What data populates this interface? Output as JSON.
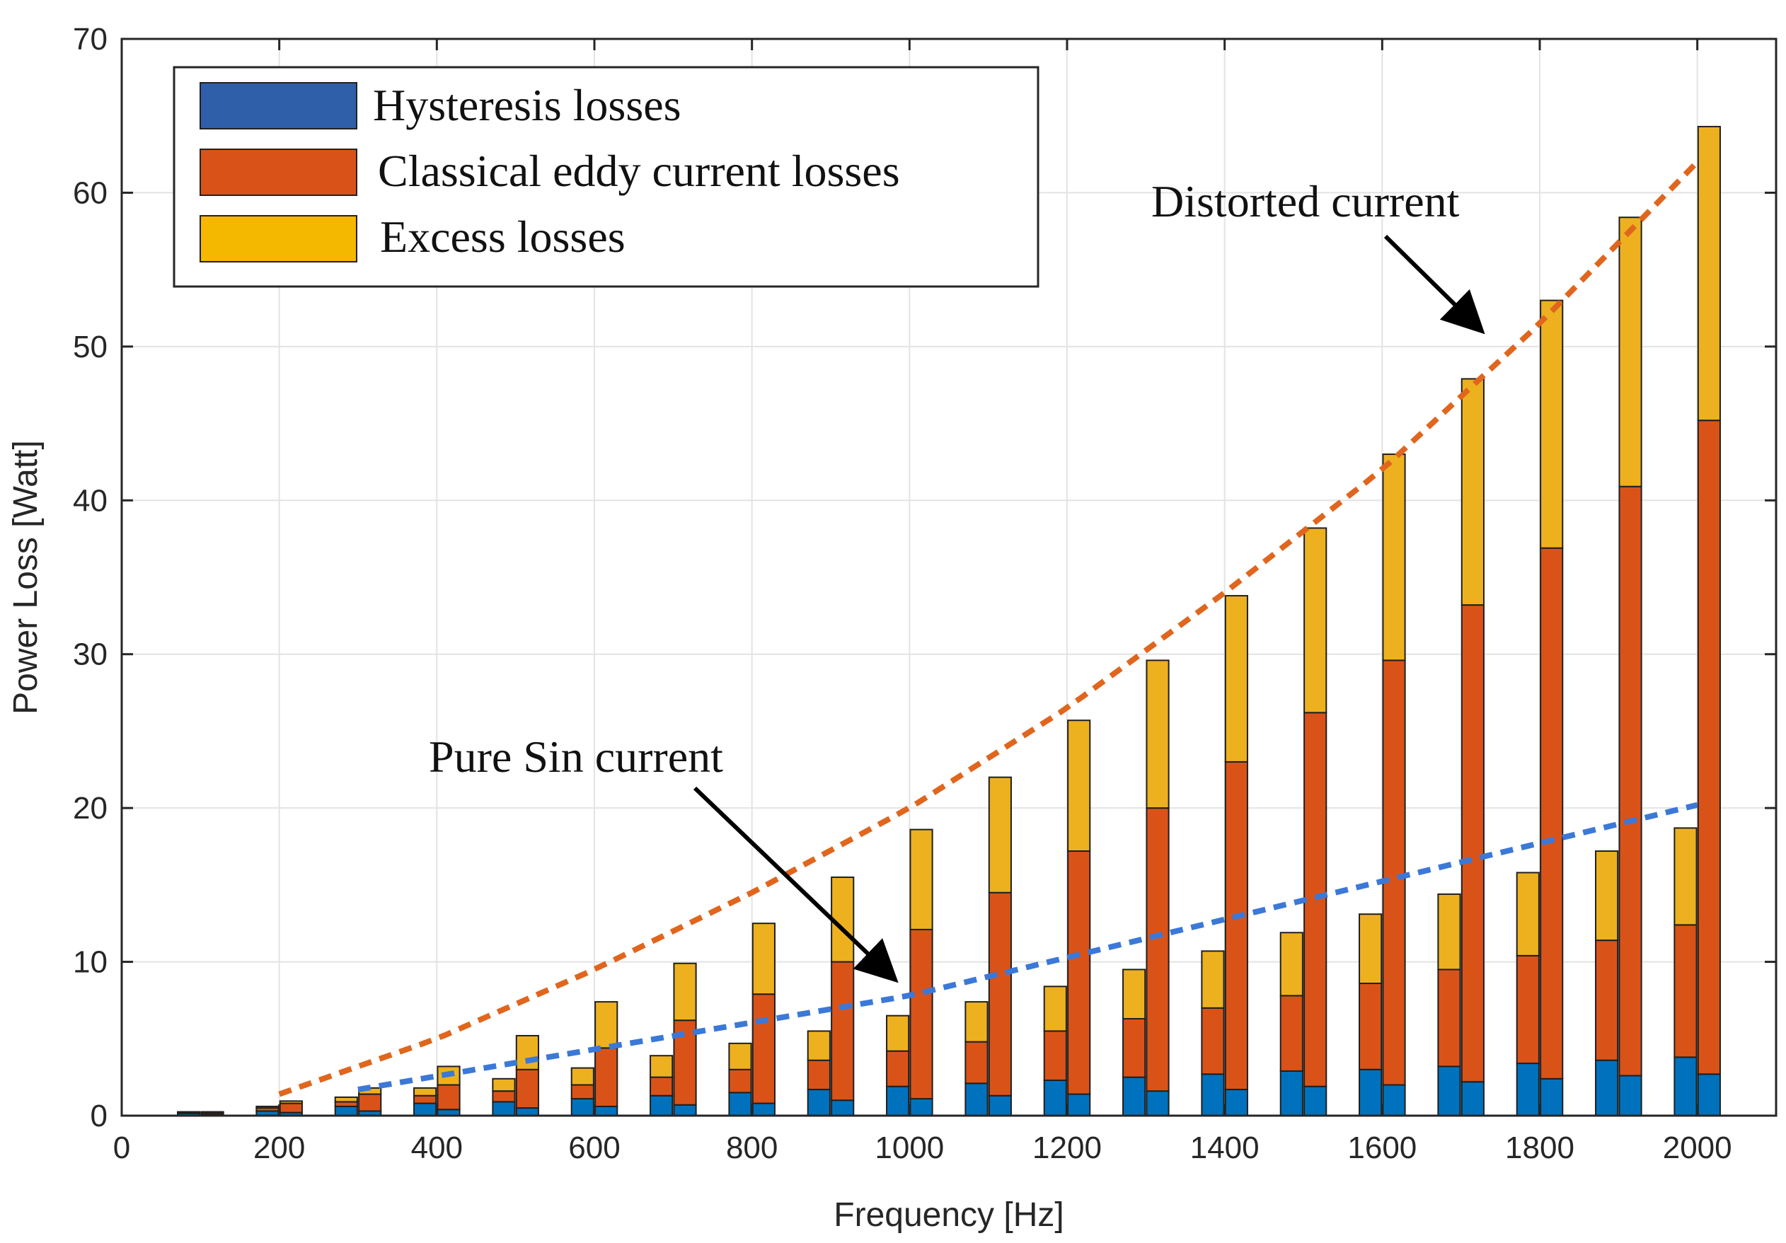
{
  "chart_data": {
    "type": "bar",
    "xlabel": "Frequency [Hz]",
    "ylabel": "Power Loss [Watt]",
    "xlim": [
      0,
      2100
    ],
    "ylim": [
      0,
      70
    ],
    "grid": true,
    "legend_position": "top-left",
    "x_ticks": [
      "0",
      "200",
      "400",
      "600",
      "800",
      "1000",
      "1200",
      "1400",
      "1600",
      "1800",
      "2000"
    ],
    "y_ticks": [
      "0",
      "10",
      "20",
      "30",
      "40",
      "50",
      "60",
      "70"
    ],
    "legend": [
      {
        "label": "Hysteresis losses",
        "color": "#2e5fa8"
      },
      {
        "label": "Classical eddy current losses",
        "color": "#d95319"
      },
      {
        "label": "Excess losses",
        "color": "#f5b800"
      }
    ],
    "colors": {
      "hysteresis": "#0072bd",
      "eddy": "#d95319",
      "excess": "#edb120"
    },
    "frequencies": [
      100,
      200,
      300,
      400,
      500,
      600,
      700,
      800,
      900,
      1000,
      1100,
      1200,
      1300,
      1400,
      1500,
      1600,
      1700,
      1800,
      1900,
      2000
    ],
    "series": [
      {
        "name": "Pure Sin current",
        "hysteresis": [
          0.15,
          0.3,
          0.6,
          0.8,
          0.9,
          1.1,
          1.3,
          1.5,
          1.7,
          1.9,
          2.1,
          2.3,
          2.5,
          2.7,
          2.9,
          3.0,
          3.2,
          3.4,
          3.6,
          3.8
        ],
        "eddy": [
          0.05,
          0.2,
          0.3,
          0.5,
          0.7,
          0.9,
          1.2,
          1.5,
          1.9,
          2.3,
          2.7,
          3.2,
          3.8,
          4.3,
          4.9,
          5.6,
          6.3,
          7.0,
          7.8,
          8.6
        ],
        "excess": [
          0.05,
          0.1,
          0.3,
          0.5,
          0.8,
          1.1,
          1.4,
          1.7,
          1.9,
          2.3,
          2.6,
          2.9,
          3.2,
          3.7,
          4.1,
          4.5,
          4.9,
          5.4,
          5.8,
          6.3
        ]
      },
      {
        "name": "Distorted current",
        "hysteresis": [
          0.1,
          0.2,
          0.3,
          0.4,
          0.5,
          0.6,
          0.7,
          0.8,
          1.0,
          1.1,
          1.3,
          1.4,
          1.6,
          1.7,
          1.9,
          2.0,
          2.2,
          2.4,
          2.6,
          2.7
        ],
        "eddy": [
          0.1,
          0.6,
          1.1,
          1.6,
          2.5,
          3.8,
          5.5,
          7.1,
          9.0,
          11.0,
          13.2,
          15.8,
          18.4,
          21.3,
          24.3,
          27.6,
          31.0,
          34.5,
          38.3,
          42.5
        ],
        "excess": [
          0.05,
          0.15,
          0.4,
          1.2,
          2.2,
          3.0,
          3.7,
          4.6,
          5.5,
          6.5,
          7.5,
          8.5,
          9.6,
          10.8,
          12.0,
          13.4,
          14.7,
          16.1,
          17.5,
          19.1
        ]
      }
    ],
    "trend_lines": [
      {
        "name": "Distorted current trend",
        "color": "#e0661e",
        "x": [
          200,
          400,
          600,
          800,
          1000,
          1200,
          1400,
          1600,
          1800,
          2000
        ],
        "y": [
          1.4,
          5.0,
          9.5,
          14.5,
          20.0,
          26.5,
          34.0,
          42.0,
          51.5,
          62.0
        ]
      },
      {
        "name": "Pure Sin current trend",
        "color": "#3b78d8",
        "x": [
          300,
          1000,
          2000
        ],
        "y": [
          1.7,
          7.8,
          20.2
        ]
      }
    ],
    "annotations": [
      {
        "text": "Distorted current",
        "arrow_to": [
          1750,
          50
        ]
      },
      {
        "text": "Pure Sin current",
        "arrow_to": [
          1000,
          7.6
        ]
      }
    ]
  }
}
